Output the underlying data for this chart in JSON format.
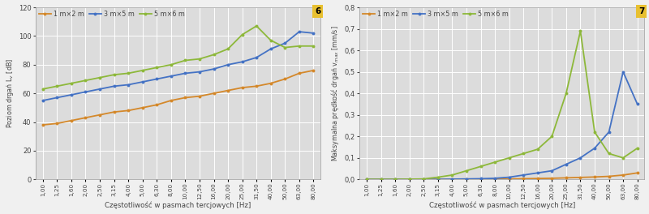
{
  "x_labels": [
    "1,00",
    "1,25",
    "1,60",
    "2,00",
    "2,50",
    "3,15",
    "4,00",
    "5,00",
    "6,30",
    "8,00",
    "10,00",
    "12,50",
    "16,00",
    "20,00",
    "25,00",
    "31,50",
    "40,00",
    "50,00",
    "63,00",
    "80,00"
  ],
  "x_vals": [
    1.0,
    1.25,
    1.6,
    2.0,
    2.5,
    3.15,
    4.0,
    5.0,
    6.3,
    8.0,
    10.0,
    12.5,
    16.0,
    20.0,
    25.0,
    31.5,
    40.0,
    50.0,
    63.0,
    80.0
  ],
  "chart6": {
    "title_num": "6",
    "ylabel": "Poziom drgań L$_v$ [dB]",
    "xlabel": "Częstotliwość w pasmach tercjowych [Hz]",
    "ylim": [
      0,
      120
    ],
    "yticks": [
      0,
      20,
      40,
      60,
      80,
      100,
      120
    ],
    "series": {
      "1m2m": {
        "label": "1 m×2 m",
        "color": "#d4882a",
        "data": [
          38,
          39,
          41,
          43,
          45,
          47,
          48,
          50,
          52,
          55,
          57,
          58,
          60,
          62,
          64,
          65,
          67,
          70,
          74,
          76
        ]
      },
      "3m5m": {
        "label": "3 m×5 m",
        "color": "#4472c4",
        "data": [
          55,
          57,
          59,
          61,
          63,
          65,
          66,
          68,
          70,
          72,
          74,
          75,
          77,
          80,
          82,
          85,
          91,
          95,
          103,
          102
        ]
      },
      "5m6m": {
        "label": "5 m×6 m",
        "color": "#8db83a",
        "data": [
          63,
          65,
          67,
          69,
          71,
          73,
          74,
          76,
          78,
          80,
          83,
          84,
          87,
          91,
          101,
          107,
          97,
          92,
          93,
          93
        ]
      }
    }
  },
  "chart7": {
    "title_num": "7",
    "ylabel": "Maksymalna prędkość drgań v$_{max}$ [mm/s]",
    "xlabel": "Częstotliwość w pasmach tercjowych [Hz]",
    "ylim": [
      0,
      0.8
    ],
    "yticks": [
      0.0,
      0.1,
      0.2,
      0.3,
      0.4,
      0.5,
      0.6,
      0.7,
      0.8
    ],
    "series": {
      "1m2m": {
        "label": "1 m×2 m",
        "color": "#d4882a",
        "data": [
          0.0,
          0.0,
          0.0,
          0.0,
          0.0,
          0.0,
          0.0,
          0.001,
          0.001,
          0.001,
          0.002,
          0.003,
          0.004,
          0.005,
          0.007,
          0.009,
          0.011,
          0.014,
          0.02,
          0.03
        ]
      },
      "3m5m": {
        "label": "3 m×5 m",
        "color": "#4472c4",
        "data": [
          0.0,
          0.0,
          0.0,
          0.0,
          0.0,
          0.0,
          0.001,
          0.002,
          0.003,
          0.005,
          0.01,
          0.02,
          0.03,
          0.04,
          0.07,
          0.1,
          0.145,
          0.22,
          0.5,
          0.35
        ]
      },
      "5m6m": {
        "label": "5 m×6 m",
        "color": "#8db83a",
        "data": [
          0.0,
          0.0,
          0.0,
          0.001,
          0.002,
          0.01,
          0.02,
          0.04,
          0.06,
          0.08,
          0.1,
          0.12,
          0.14,
          0.2,
          0.4,
          0.69,
          0.22,
          0.12,
          0.1,
          0.145
        ]
      }
    }
  },
  "fig_bg_color": "#f0f0f0",
  "plot_bg_color": "#dcdcdc",
  "grid_color": "#ffffff",
  "label_color": "#444444",
  "tick_color": "#444444",
  "marker": "o",
  "markersize": 2.8,
  "linewidth": 1.3
}
